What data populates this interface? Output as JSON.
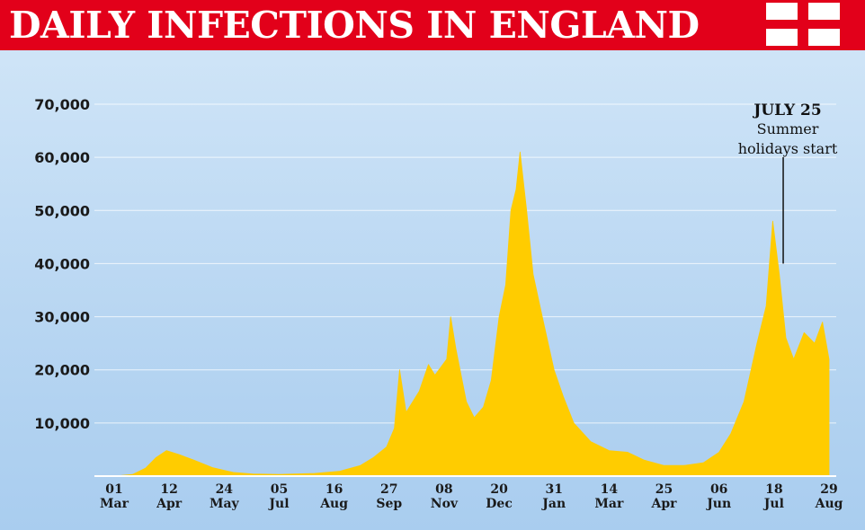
{
  "header": {
    "title": "DAILY INFECTIONS IN ENGLAND",
    "flag_icon": "england-flag-icon",
    "colors": {
      "banner": "#e2001a",
      "flag_cross": "#e2001a",
      "flag_field": "#ffffff"
    }
  },
  "chart_data": {
    "type": "area",
    "title": "DAILY INFECTIONS IN ENGLAND",
    "xlabel": "",
    "ylabel": "",
    "ylim": [
      0,
      70000
    ],
    "grid": true,
    "color": "#ffcc00",
    "y_ticks": [
      {
        "value": 10000,
        "label": "10,000"
      },
      {
        "value": 20000,
        "label": "20,000"
      },
      {
        "value": 30000,
        "label": "30,000"
      },
      {
        "value": 40000,
        "label": "40,000"
      },
      {
        "value": 50000,
        "label": "50,000"
      },
      {
        "value": 60000,
        "label": "60,000"
      },
      {
        "value": 70000,
        "label": "70,000"
      }
    ],
    "x_ticks": [
      {
        "date": "2020-03-01",
        "day": "01",
        "month": "Mar"
      },
      {
        "date": "2020-04-12",
        "day": "12",
        "month": "Apr"
      },
      {
        "date": "2020-05-24",
        "day": "24",
        "month": "May"
      },
      {
        "date": "2020-07-05",
        "day": "05",
        "month": "Jul"
      },
      {
        "date": "2020-08-16",
        "day": "16",
        "month": "Aug"
      },
      {
        "date": "2020-09-27",
        "day": "27",
        "month": "Sep"
      },
      {
        "date": "2020-11-08",
        "day": "08",
        "month": "Nov"
      },
      {
        "date": "2020-12-20",
        "day": "20",
        "month": "Dec"
      },
      {
        "date": "2021-01-31",
        "day": "31",
        "month": "Jan"
      },
      {
        "date": "2021-03-14",
        "day": "14",
        "month": "Mar"
      },
      {
        "date": "2021-04-25",
        "day": "25",
        "month": "Apr"
      },
      {
        "date": "2021-06-06",
        "day": "06",
        "month": "Jun"
      },
      {
        "date": "2021-07-18",
        "day": "18",
        "month": "Jul"
      },
      {
        "date": "2021-08-29",
        "day": "29",
        "month": "Aug"
      }
    ],
    "series": [
      {
        "values": [
          [
            "2020-03-01",
            0
          ],
          [
            "2020-03-15",
            300
          ],
          [
            "2020-03-25",
            1500
          ],
          [
            "2020-04-02",
            3500
          ],
          [
            "2020-04-10",
            4800
          ],
          [
            "2020-04-20",
            4000
          ],
          [
            "2020-05-01",
            3000
          ],
          [
            "2020-05-15",
            1600
          ],
          [
            "2020-05-31",
            700
          ],
          [
            "2020-06-15",
            400
          ],
          [
            "2020-07-05",
            300
          ],
          [
            "2020-08-01",
            500
          ],
          [
            "2020-08-20",
            900
          ],
          [
            "2020-09-05",
            2000
          ],
          [
            "2020-09-15",
            3500
          ],
          [
            "2020-09-25",
            5500
          ],
          [
            "2020-10-01",
            9000
          ],
          [
            "2020-10-05",
            20000
          ],
          [
            "2020-10-10",
            12000
          ],
          [
            "2020-10-20",
            16000
          ],
          [
            "2020-10-27",
            21000
          ],
          [
            "2020-11-01",
            19000
          ],
          [
            "2020-11-10",
            22000
          ],
          [
            "2020-11-13",
            30000
          ],
          [
            "2020-11-17",
            24000
          ],
          [
            "2020-11-25",
            14000
          ],
          [
            "2020-12-01",
            11000
          ],
          [
            "2020-12-08",
            13000
          ],
          [
            "2020-12-14",
            18000
          ],
          [
            "2020-12-20",
            30000
          ],
          [
            "2020-12-25",
            36000
          ],
          [
            "2020-12-29",
            50000
          ],
          [
            "2021-01-02",
            54000
          ],
          [
            "2021-01-05",
            61000
          ],
          [
            "2021-01-10",
            50000
          ],
          [
            "2021-01-15",
            38000
          ],
          [
            "2021-01-22",
            30000
          ],
          [
            "2021-01-31",
            20000
          ],
          [
            "2021-02-07",
            15000
          ],
          [
            "2021-02-15",
            10000
          ],
          [
            "2021-02-28",
            6500
          ],
          [
            "2021-03-14",
            4800
          ],
          [
            "2021-03-28",
            4500
          ],
          [
            "2021-04-10",
            3000
          ],
          [
            "2021-04-25",
            2000
          ],
          [
            "2021-05-10",
            2000
          ],
          [
            "2021-05-25",
            2500
          ],
          [
            "2021-06-06",
            4500
          ],
          [
            "2021-06-15",
            8000
          ],
          [
            "2021-06-25",
            14000
          ],
          [
            "2021-07-05",
            25000
          ],
          [
            "2021-07-12",
            32000
          ],
          [
            "2021-07-17",
            48000
          ],
          [
            "2021-07-22",
            38000
          ],
          [
            "2021-07-27",
            26000
          ],
          [
            "2021-08-02",
            22000
          ],
          [
            "2021-08-10",
            27000
          ],
          [
            "2021-08-18",
            25000
          ],
          [
            "2021-08-24",
            29000
          ],
          [
            "2021-08-29",
            22000
          ]
        ]
      }
    ],
    "annotation": {
      "date": "JULY 25",
      "text_lines": [
        "Summer",
        "holidays start"
      ],
      "x": "2021-07-25",
      "y": 40000
    }
  }
}
